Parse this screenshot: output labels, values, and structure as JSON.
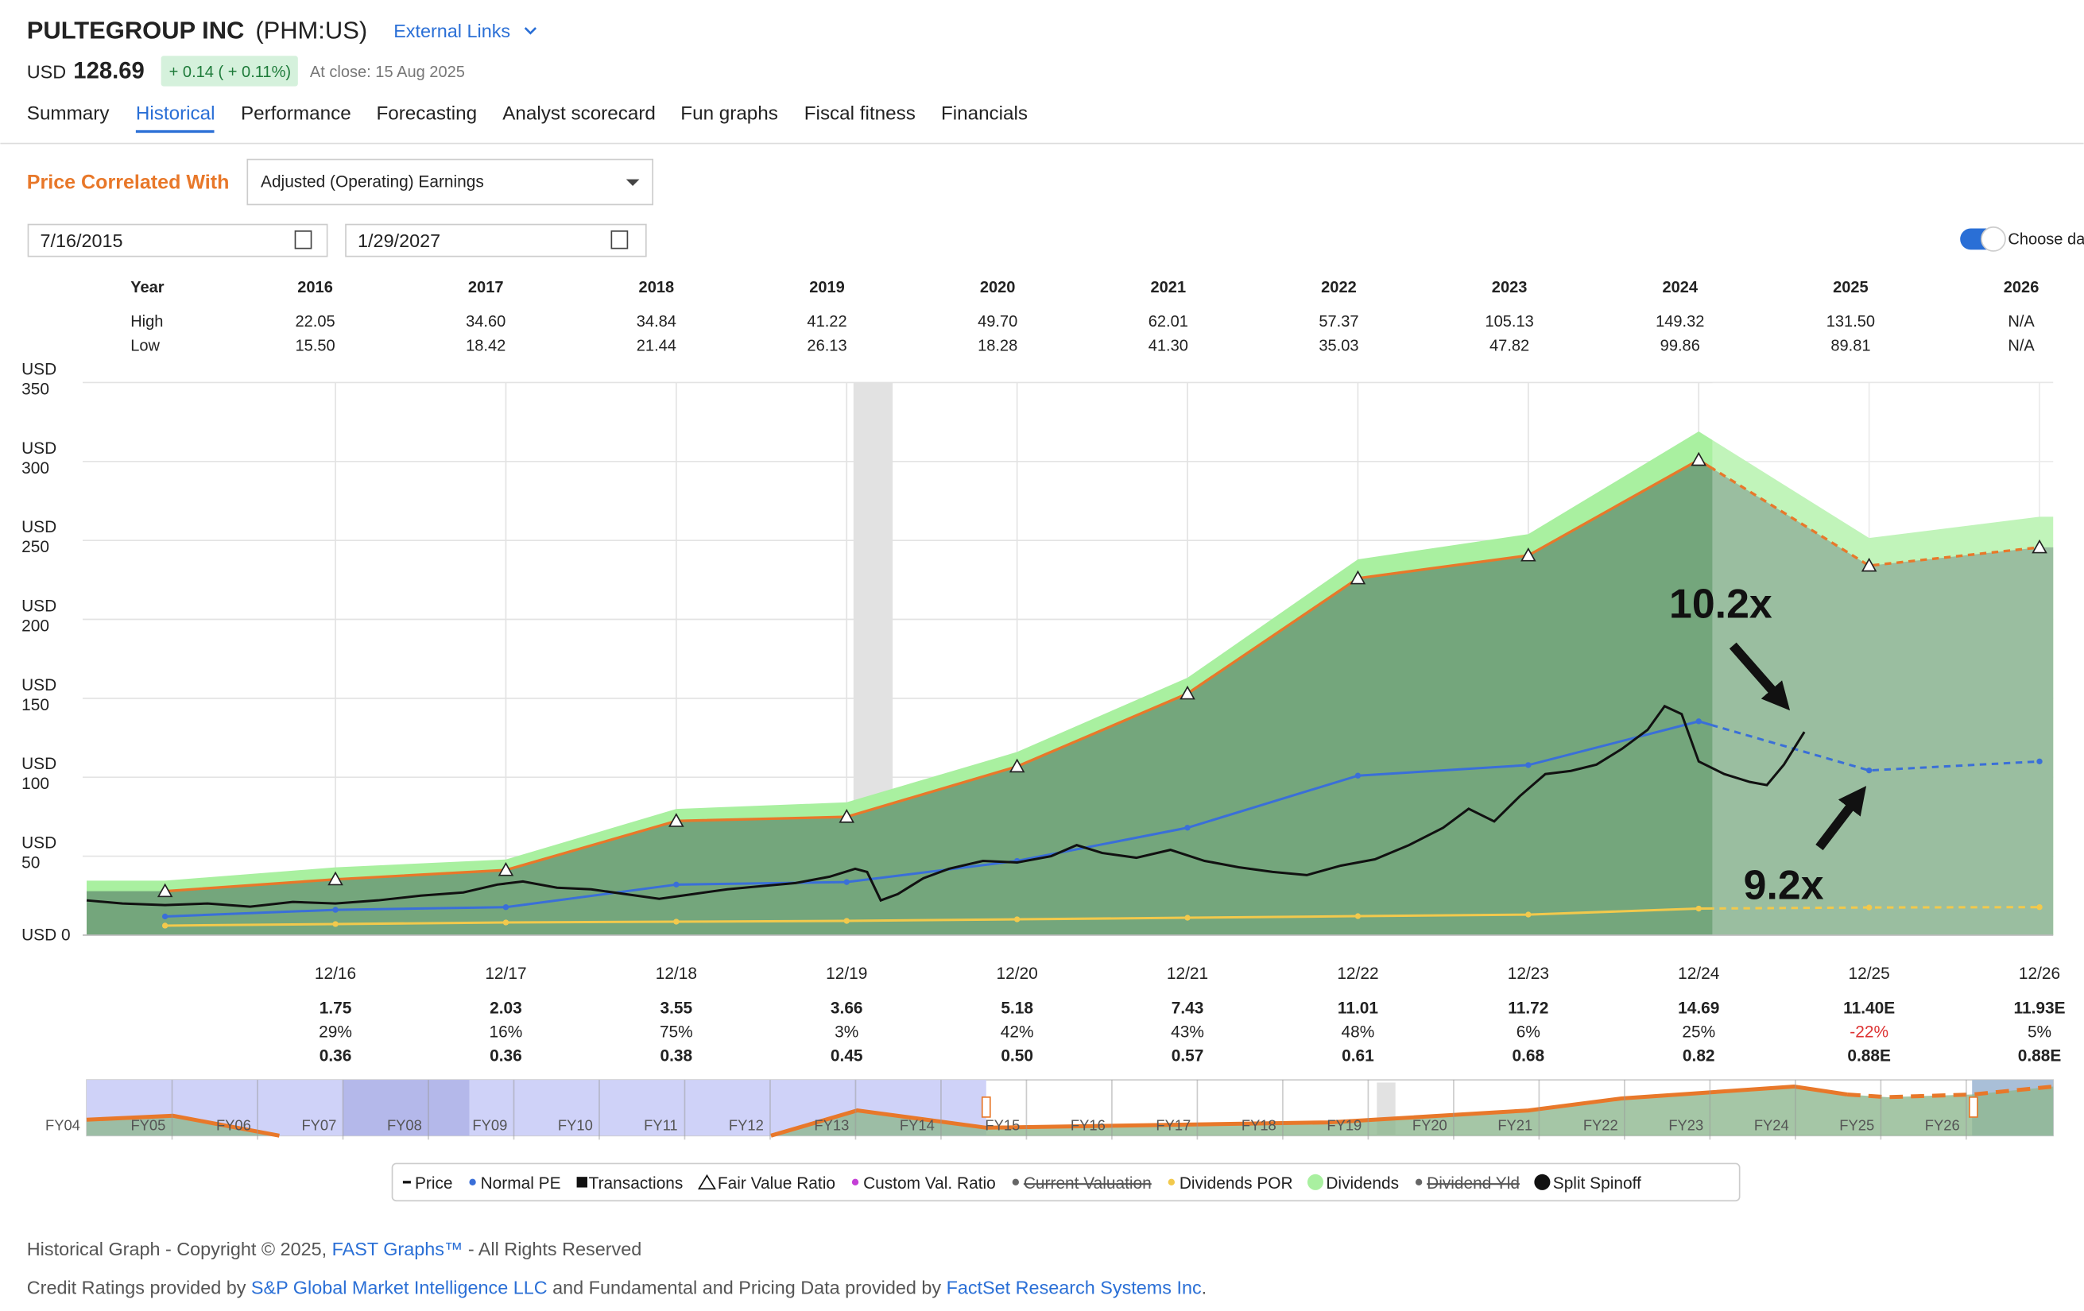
{
  "header": {
    "company": "PULTEGROUP INC",
    "ticker": "(PHM:US)",
    "links": "External Links",
    "currency": "USD",
    "price": "128.69",
    "change": "+ 0.14 ( + 0.11%)",
    "close": "At close: 15 Aug 2025"
  },
  "tabs": {
    "items": [
      "Summary",
      "Historical",
      "Performance",
      "Forecasting",
      "Analyst scorecard",
      "Fun graphs",
      "Fiscal fitness",
      "Financials"
    ],
    "active": 1
  },
  "controls": {
    "label": "Price Correlated With",
    "select": "Adjusted (Operating) Earnings",
    "start": "7/16/2015",
    "end": "1/29/2027",
    "toggle": "Choose da"
  },
  "table": {
    "rows": [
      [
        "Year",
        "2016",
        "2017",
        "2018",
        "2019",
        "2020",
        "2021",
        "2022",
        "2023",
        "2024",
        "2025",
        "2026"
      ],
      [
        "High",
        "22.05",
        "34.60",
        "34.84",
        "41.22",
        "49.70",
        "62.01",
        "57.37",
        "105.13",
        "149.32",
        "131.50",
        "N/A"
      ],
      [
        "Low",
        "15.50",
        "18.42",
        "21.44",
        "26.13",
        "18.28",
        "41.30",
        "35.03",
        "47.82",
        "99.86",
        "89.81",
        "N/A"
      ]
    ]
  },
  "chart_data": {
    "type": "line",
    "ylim": [
      0,
      350
    ],
    "yticks": [
      {
        "value": 0,
        "label": "USD 0"
      },
      {
        "value": 50,
        "label": "USD 50"
      },
      {
        "value": 100,
        "label": "USD 100"
      },
      {
        "value": 150,
        "label": "USD 150"
      },
      {
        "value": 200,
        "label": "USD 200"
      },
      {
        "value": 250,
        "label": "USD 250"
      },
      {
        "value": 300,
        "label": "USD 300"
      },
      {
        "value": 350,
        "label": "USD 350"
      }
    ],
    "xlim": [
      2015.54,
      2027.08
    ],
    "xticks": [
      {
        "value": 2017.0,
        "label": "12/16"
      },
      {
        "value": 2018.0,
        "label": "12/17"
      },
      {
        "value": 2019.0,
        "label": "12/18"
      },
      {
        "value": 2020.0,
        "label": "12/19"
      },
      {
        "value": 2021.0,
        "label": "12/20"
      },
      {
        "value": 2022.0,
        "label": "12/21"
      },
      {
        "value": 2023.0,
        "label": "12/22"
      },
      {
        "value": 2024.0,
        "label": "12/23"
      },
      {
        "value": 2025.0,
        "label": "12/24"
      },
      {
        "value": 2026.0,
        "label": "12/25"
      },
      {
        "value": 2027.0,
        "label": "12/26"
      }
    ],
    "grid": true,
    "recession": [
      2020.04,
      2020.27
    ],
    "forecast_start": 2025.08,
    "series": [
      {
        "style": "band",
        "color": "#a9f0a0",
        "x": [
          2016,
          2017,
          2018,
          2019,
          2020,
          2021,
          2022,
          2023,
          2024,
          2025,
          2026,
          2027
        ],
        "values": [
          34.5,
          42.9,
          47.9,
          79.9,
          84.1,
          116,
          163,
          238,
          254,
          319,
          251.5,
          265
        ]
      },
      {
        "style": "area",
        "color": "#e8782a",
        "fill": "#74a67c",
        "x": [
          2016,
          2017,
          2018,
          2019,
          2020,
          2021,
          2022,
          2023,
          2024,
          2025,
          2026,
          2027
        ],
        "values": [
          27.8,
          35.3,
          41.2,
          72.3,
          74.9,
          106.8,
          153,
          226,
          240.5,
          301,
          234,
          245.6
        ]
      },
      {
        "style": "line",
        "color": "#f2c94c",
        "x": [
          2016,
          2017,
          2018,
          2019,
          2020,
          2021,
          2022,
          2023,
          2024,
          2025,
          2026,
          2027
        ],
        "values": [
          6,
          7,
          8,
          8.5,
          9,
          10,
          11,
          12,
          13,
          16.8,
          17.5,
          17.7
        ]
      },
      {
        "style": "line",
        "color": "#3a6fd8",
        "x": [
          2016,
          2017,
          2018,
          2019,
          2020,
          2021,
          2022,
          2023,
          2024,
          2025,
          2026,
          2027
        ],
        "values": [
          11.8,
          16,
          17.7,
          32,
          33.6,
          47,
          68,
          101,
          107.7,
          135.4,
          104.3,
          110
        ]
      },
      {
        "style": "price",
        "color": "#111111",
        "x": [
          2015.54,
          2015.75,
          2016.0,
          2016.25,
          2016.5,
          2016.75,
          2017.0,
          2017.25,
          2017.5,
          2017.75,
          2017.95,
          2018.1,
          2018.3,
          2018.5,
          2018.7,
          2018.9,
          2019.1,
          2019.3,
          2019.5,
          2019.7,
          2019.9,
          2020.05,
          2020.12,
          2020.2,
          2020.3,
          2020.45,
          2020.6,
          2020.8,
          2021.0,
          2021.2,
          2021.35,
          2021.5,
          2021.7,
          2021.9,
          2022.1,
          2022.3,
          2022.5,
          2022.7,
          2022.9,
          2023.1,
          2023.3,
          2023.5,
          2023.65,
          2023.8,
          2023.95,
          2024.1,
          2024.25,
          2024.4,
          2024.55,
          2024.7,
          2024.8,
          2024.9,
          2025.0,
          2025.15,
          2025.3,
          2025.4,
          2025.5,
          2025.62
        ],
        "values": [
          22,
          20,
          19,
          20,
          18,
          21,
          20,
          22,
          25,
          27,
          32,
          34,
          30,
          29,
          26,
          23,
          26,
          29,
          31,
          33,
          37,
          42,
          40,
          22,
          26,
          36,
          42,
          47,
          46,
          50,
          57,
          52,
          49,
          54,
          47,
          43,
          40,
          38,
          44,
          48,
          57,
          68,
          80,
          72,
          88,
          102,
          104,
          108,
          118,
          130,
          145,
          140,
          110,
          102,
          97,
          95,
          108,
          128.69
        ]
      }
    ],
    "annotations": [
      "10.2x",
      "9.2x"
    ],
    "earnings": {
      "eps": [
        "1.75",
        "2.03",
        "3.55",
        "3.66",
        "5.18",
        "7.43",
        "11.01",
        "11.72",
        "14.69",
        "11.40E",
        "11.93E"
      ],
      "growth": [
        "29%",
        "16%",
        "75%",
        "3%",
        "42%",
        "43%",
        "48%",
        "6%",
        "25%",
        "-22%",
        "5%"
      ],
      "dividends": [
        "0.36",
        "0.36",
        "0.38",
        "0.45",
        "0.50",
        "0.57",
        "0.61",
        "0.68",
        "0.82",
        "0.88E",
        "0.88E"
      ]
    },
    "navigator": [
      "FY04",
      "FY05",
      "FY06",
      "FY07",
      "FY08",
      "FY09",
      "FY10",
      "FY11",
      "FY12",
      "FY13",
      "FY14",
      "FY15",
      "FY16",
      "FY17",
      "FY18",
      "FY19",
      "FY20",
      "FY21",
      "FY22",
      "FY23",
      "FY24",
      "FY25",
      "FY26"
    ],
    "legend": [
      {
        "name": "Price",
        "marker": "dash",
        "color": "#111"
      },
      {
        "name": "Normal PE",
        "marker": "dot",
        "color": "#3a6fd8"
      },
      {
        "name": "Transactions",
        "marker": "square",
        "color": "#111"
      },
      {
        "name": "Fair Value Ratio",
        "marker": "triangle",
        "color": "#111"
      },
      {
        "name": "Custom Val. Ratio",
        "marker": "dot",
        "color": "#c43fd6"
      },
      {
        "name": "Current Valuation",
        "marker": "dot",
        "color": "#666",
        "strike": true
      },
      {
        "name": "Dividends POR",
        "marker": "dot",
        "color": "#f2c94c"
      },
      {
        "name": "Dividends",
        "marker": "circle",
        "color": "#a9f0a0"
      },
      {
        "name": "Dividend Yld",
        "marker": "dot",
        "color": "#666",
        "strike": true
      },
      {
        "name": "Split Spinoff",
        "marker": "circle",
        "color": "#111"
      }
    ]
  },
  "footer": {
    "line1": [
      "Historical Graph - Copyright © 2025, ",
      "FAST Graphs™",
      " - All Rights Reserved"
    ],
    "line2": [
      "Credit Ratings provided by ",
      "S&P Global Market Intelligence LLC",
      " and Fundamental and Pricing Data provided by ",
      "FactSet Research Systems Inc",
      "."
    ]
  }
}
